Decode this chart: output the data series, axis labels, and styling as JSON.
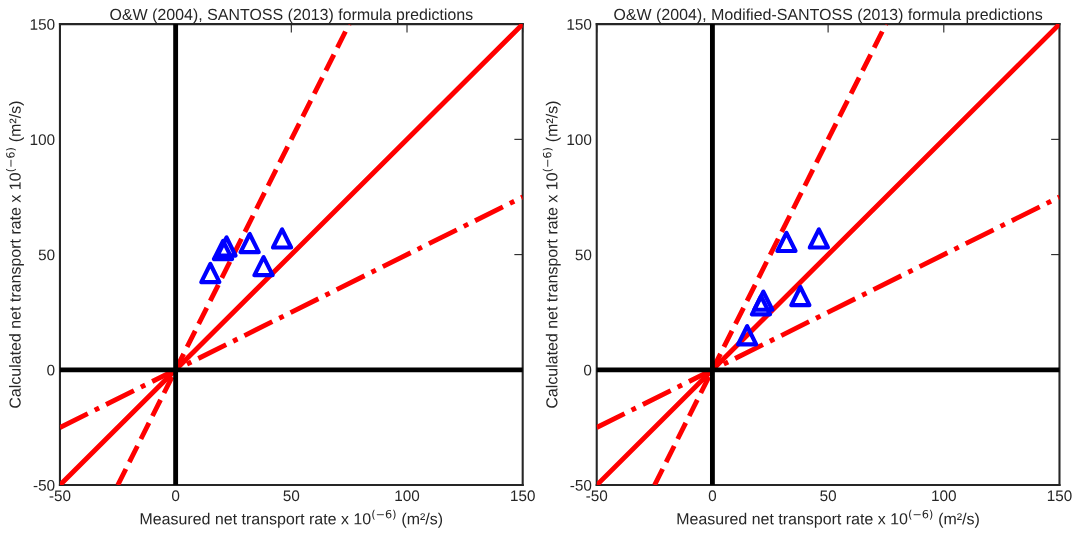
{
  "chart_data": [
    {
      "type": "scatter",
      "title": "O&W (2004), SANTOSS (2013) formula predictions",
      "xlabel": "Measured net transport rate x 10$^{(−6)}$ (m²/s)",
      "ylabel": "Calculated net transport rate x 10$^{(−6)}$ (m²/s)",
      "xlim": [
        -50,
        150
      ],
      "ylim": [
        -50,
        150
      ],
      "xticks": [
        -50,
        0,
        50,
        100,
        150
      ],
      "yticks": [
        -50,
        0,
        50,
        100,
        150
      ],
      "grid": false,
      "series": [
        {
          "color": "#0000ff",
          "marker": "triangle",
          "x": [
            15,
            20.5,
            22,
            32,
            38,
            46
          ],
          "values": [
            42,
            52,
            53.5,
            55,
            45,
            57
          ]
        },
        {
          "type": "line",
          "color": "#ff0000",
          "line_style": "solid",
          "marker": "none",
          "x": [
            -50,
            150
          ],
          "values": [
            -50,
            150
          ]
        },
        {
          "type": "line",
          "color": "#ff0000",
          "line_style": "dashed",
          "marker": "none",
          "x": [
            -25,
            75
          ],
          "values": [
            -50,
            150
          ]
        },
        {
          "type": "line",
          "color": "#ff0000",
          "line_style": "dashdot",
          "marker": "none",
          "x": [
            -50,
            150
          ],
          "values": [
            -25,
            75
          ]
        },
        {
          "type": "line",
          "color": "#000000",
          "line_style": "solid",
          "marker": "none",
          "x": [
            0,
            0
          ],
          "values": [
            -50,
            150
          ]
        },
        {
          "type": "line",
          "color": "#000000",
          "line_style": "solid",
          "marker": "none",
          "x": [
            -50,
            150
          ],
          "values": [
            0,
            0
          ]
        }
      ]
    },
    {
      "type": "scatter",
      "title": "O&W (2004), Modified-SANTOSS (2013) formula predictions",
      "xlabel": "Measured net transport rate x 10$^{(−6)}$ (m²/s)",
      "ylabel": "Calculated net transport rate x 10$^{(−6)}$ (m²/s)",
      "xlim": [
        -50,
        150
      ],
      "ylim": [
        -50,
        150
      ],
      "xticks": [
        -50,
        0,
        50,
        100,
        150
      ],
      "yticks": [
        -50,
        0,
        50,
        100,
        150
      ],
      "grid": false,
      "series": [
        {
          "color": "#0000ff",
          "marker": "triangle",
          "x": [
            15,
            21,
            22,
            32,
            38,
            46
          ],
          "values": [
            15,
            28,
            30,
            55.5,
            32,
            57
          ]
        },
        {
          "type": "line",
          "color": "#ff0000",
          "line_style": "solid",
          "marker": "none",
          "x": [
            -50,
            150
          ],
          "values": [
            -50,
            150
          ]
        },
        {
          "type": "line",
          "color": "#ff0000",
          "line_style": "dashed",
          "marker": "none",
          "x": [
            -25,
            75
          ],
          "values": [
            -50,
            150
          ]
        },
        {
          "type": "line",
          "color": "#ff0000",
          "line_style": "dashdot",
          "marker": "none",
          "x": [
            -50,
            150
          ],
          "values": [
            -25,
            75
          ]
        },
        {
          "type": "line",
          "color": "#000000",
          "line_style": "solid",
          "marker": "none",
          "x": [
            0,
            0
          ],
          "values": [
            -50,
            150
          ]
        },
        {
          "type": "line",
          "color": "#000000",
          "line_style": "solid",
          "marker": "none",
          "x": [
            -50,
            150
          ],
          "values": [
            0,
            0
          ]
        }
      ]
    }
  ]
}
